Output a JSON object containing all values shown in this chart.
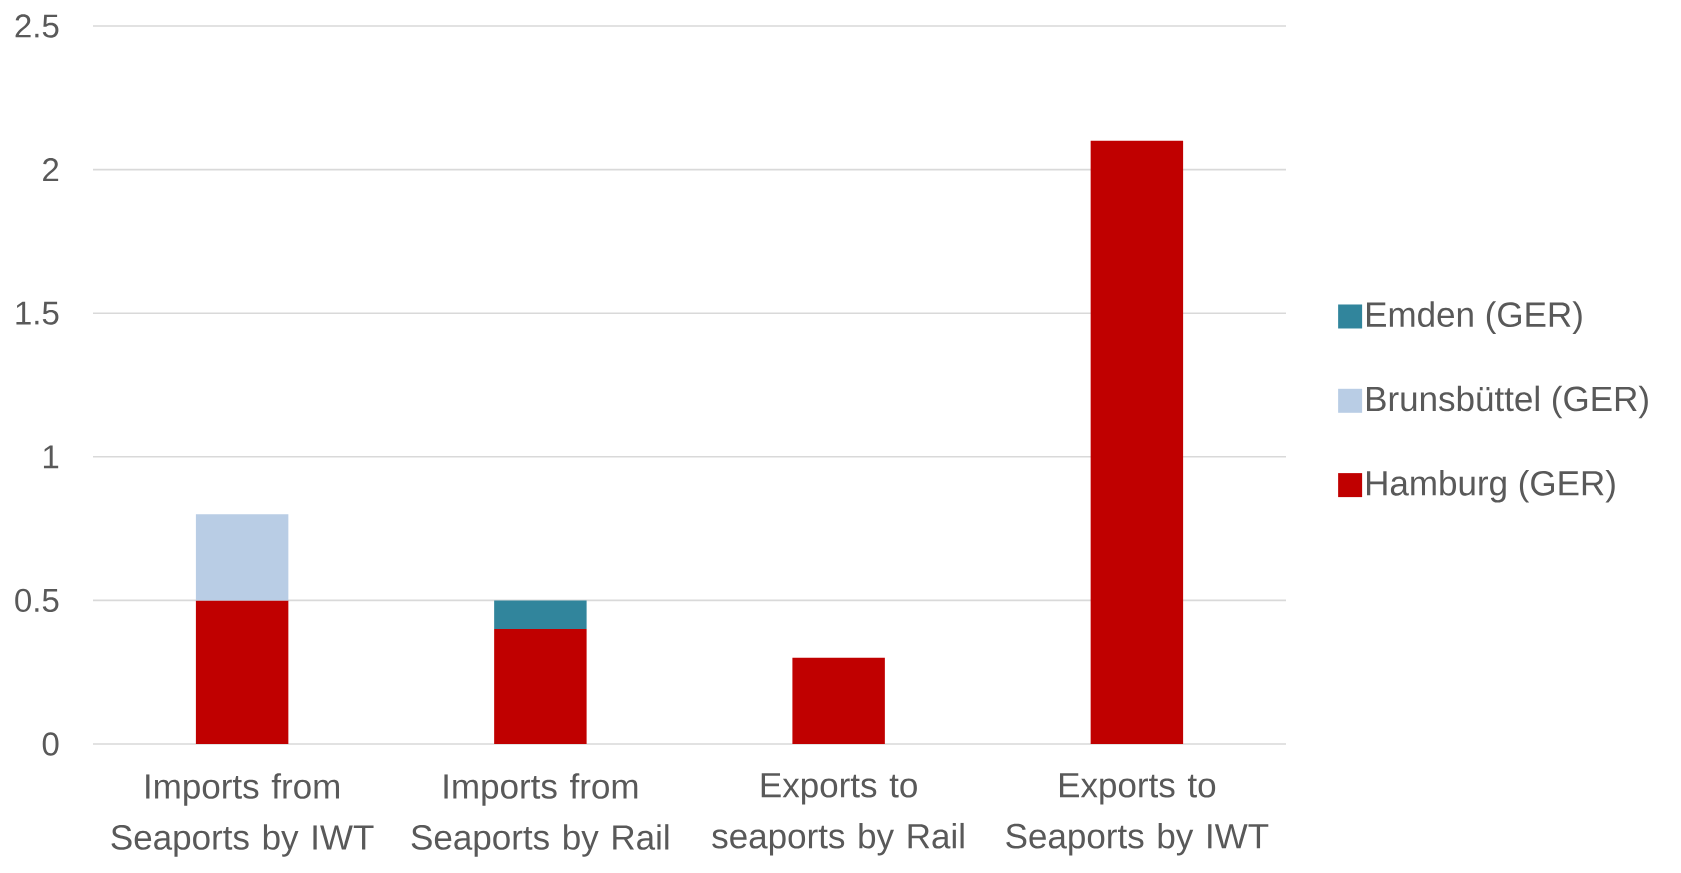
{
  "chart_data": {
    "type": "bar",
    "stacked": true,
    "categories": [
      "Imports from Seaports by IWT",
      "Imports from Seaports by Rail",
      "Exports to seaports by Rail",
      "Exports to Seaports by IWT"
    ],
    "series": [
      {
        "name": "Hamburg (GER)",
        "color": "#c00000",
        "values": [
          0.5,
          0.4,
          0.3,
          2.1
        ]
      },
      {
        "name": "Brunsbüttel (GER)",
        "color": "#b9cde5",
        "values": [
          0.3,
          null,
          null,
          null
        ]
      },
      {
        "name": "Emden (GER)",
        "color": "#31859c",
        "values": [
          null,
          0.1,
          null,
          null
        ]
      }
    ],
    "ylim": [
      0,
      2.5
    ],
    "yticks": [
      0,
      0.5,
      1,
      1.5,
      2,
      2.5
    ],
    "grid": "y",
    "legend": "right"
  }
}
